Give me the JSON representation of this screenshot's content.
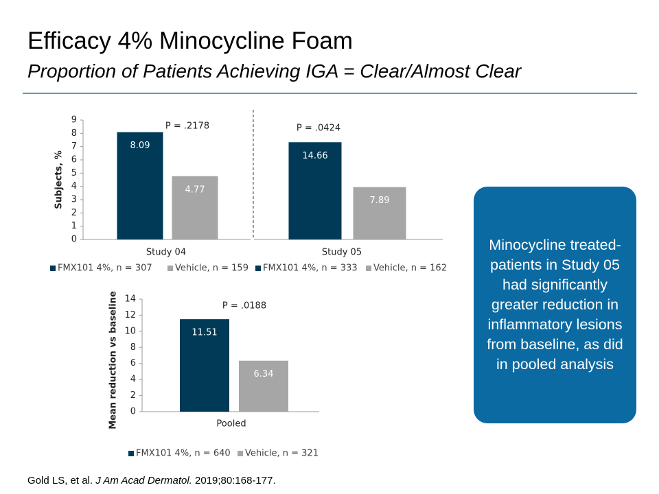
{
  "header": {
    "title": "Efficacy 4% Minocycline Foam",
    "subtitle": "Proportion of Patients Achieving IGA = Clear/Almost Clear"
  },
  "chart_data": [
    {
      "type": "bar",
      "ylabel": "Subjects, %",
      "categories": [
        "Study 04"
      ],
      "annotation": "P = .2178",
      "series": [
        {
          "name": "FMX101 4%, n = 307",
          "color": "#003a57",
          "values": [
            8.09
          ]
        },
        {
          "name": "Vehicle, n = 159",
          "color": "#a6a6a6",
          "values": [
            4.77
          ]
        }
      ],
      "ylim": [
        0,
        9
      ],
      "yticks": [
        0,
        1,
        2,
        3,
        4,
        5,
        6,
        7,
        8,
        9
      ]
    },
    {
      "type": "bar",
      "categories": [
        "Study 05"
      ],
      "annotation": "P = .0424",
      "series": [
        {
          "name": "FMX101 4%, n = 333",
          "color": "#003a57",
          "values": [
            14.66
          ]
        },
        {
          "name": "Vehicle, n = 162",
          "color": "#a6a6a6",
          "values": [
            7.89
          ]
        }
      ],
      "ylim": [
        0,
        18
      ]
    },
    {
      "type": "bar",
      "ylabel": "Mean reduction vs baseline",
      "categories": [
        "Pooled"
      ],
      "annotation": "P = .0188",
      "series": [
        {
          "name": "FMX101 4%, n = 640",
          "color": "#003a57",
          "values": [
            11.51
          ]
        },
        {
          "name": "Vehicle, n = 321",
          "color": "#a6a6a6",
          "values": [
            6.34
          ]
        }
      ],
      "ylim": [
        0,
        14
      ],
      "yticks": [
        0,
        2,
        4,
        6,
        8,
        10,
        12,
        14
      ]
    }
  ],
  "callout": "Minocycline treated-patients in Study 05 had significantly greater reduction in inflammatory lesions from baseline, as did in pooled analysis",
  "citation": {
    "authors": "Gold LS, et al.",
    "journal": "J Am Acad Dermatol.",
    "details": "2019;80:168-177."
  }
}
